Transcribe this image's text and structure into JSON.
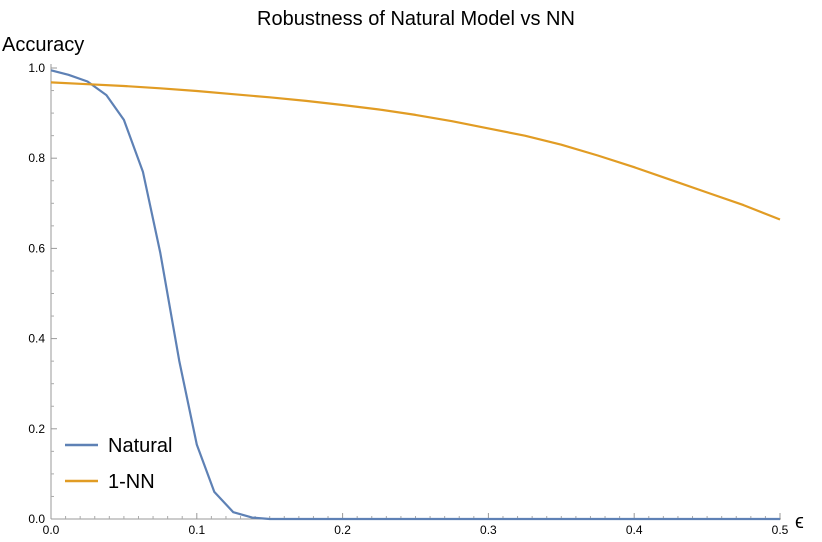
{
  "chart_data": {
    "type": "line",
    "title": "Robustness of Natural Model vs NN",
    "xlabel": "ϵ",
    "ylabel": "Accuracy",
    "xlim": [
      0,
      0.5
    ],
    "ylim": [
      0,
      1.0
    ],
    "xticks": [
      "0.0",
      "0.1",
      "0.2",
      "0.3",
      "0.4",
      "0.5"
    ],
    "yticks": [
      "0.0",
      "0.2",
      "0.4",
      "0.6",
      "0.8",
      "1.0"
    ],
    "grid": false,
    "legend_position": "bottom-left",
    "series": [
      {
        "name": "Natural",
        "color": "#5e81b5",
        "x": [
          0,
          0.012,
          0.025,
          0.038,
          0.05,
          0.063,
          0.075,
          0.088,
          0.1,
          0.112,
          0.125,
          0.138,
          0.15,
          0.2,
          0.25,
          0.3,
          0.35,
          0.4,
          0.45,
          0.5
        ],
        "y": [
          0.995,
          0.985,
          0.97,
          0.94,
          0.885,
          0.77,
          0.59,
          0.35,
          0.165,
          0.06,
          0.015,
          0.003,
          0.0,
          0.0,
          0.0,
          0.0,
          0.0,
          0.0,
          0.0,
          0.0
        ]
      },
      {
        "name": "1-NN",
        "color": "#e19c24",
        "x": [
          0,
          0.025,
          0.05,
          0.075,
          0.1,
          0.125,
          0.15,
          0.175,
          0.2,
          0.225,
          0.25,
          0.275,
          0.3,
          0.325,
          0.35,
          0.375,
          0.4,
          0.425,
          0.45,
          0.475,
          0.5
        ],
        "y": [
          0.968,
          0.964,
          0.96,
          0.955,
          0.949,
          0.942,
          0.935,
          0.927,
          0.918,
          0.908,
          0.896,
          0.882,
          0.866,
          0.85,
          0.83,
          0.806,
          0.78,
          0.752,
          0.724,
          0.696,
          0.664
        ]
      }
    ]
  }
}
